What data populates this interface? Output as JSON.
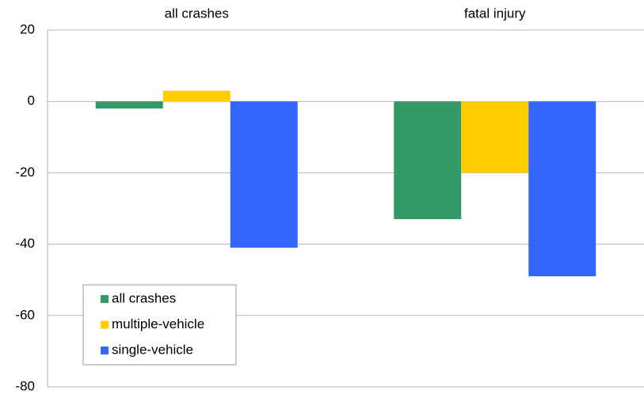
{
  "chart_data": {
    "type": "bar",
    "categories": [
      "all crashes",
      "fatal injury"
    ],
    "series": [
      {
        "name": "all crashes",
        "color": "#339966",
        "values": [
          -2,
          -33
        ]
      },
      {
        "name": "multiple-vehicle",
        "color": "#ffcc00",
        "values": [
          3,
          -20
        ]
      },
      {
        "name": "single-vehicle",
        "color": "#3366ff",
        "values": [
          -41,
          -49
        ]
      }
    ],
    "ylim": [
      -80,
      20
    ],
    "yticks": [
      -80,
      -60,
      -40,
      -20,
      0,
      20
    ],
    "grid": true,
    "legend": "lower left"
  }
}
